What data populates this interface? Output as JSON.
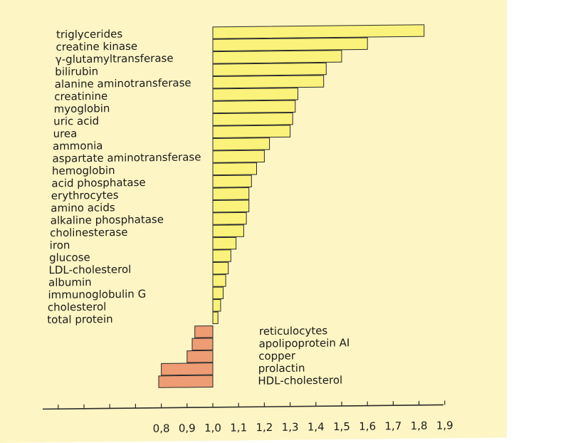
{
  "colors": {
    "page_background": "#fdf5c4",
    "positive_bar": "#fbf27b",
    "negative_bar": "#ee9c74",
    "bar_edge": "#2a2a2a",
    "text": "#1b1b1b"
  },
  "chart_data": {
    "type": "bar",
    "orientation": "horizontal",
    "title": "",
    "xlabel": "",
    "ylabel": "",
    "baseline": 1.0,
    "xlim": [
      0.8,
      1.9
    ],
    "grid": false,
    "legend": "none",
    "x_ticks": [
      "0,8",
      "0,9",
      "1,0",
      "1,1",
      "1,2",
      "1,3",
      "1,4",
      "1,5",
      "1,6",
      "1,7",
      "1,8",
      "1,9"
    ],
    "x_tick_values": [
      0.8,
      0.9,
      1.0,
      1.1,
      1.2,
      1.3,
      1.4,
      1.5,
      1.6,
      1.7,
      1.8,
      1.9
    ],
    "categories": [
      "triglycerides",
      "creatine kinase",
      "γ-glutamyltransferase",
      "bilirubin",
      "alanine aminotransferase",
      "creatinine",
      "myoglobin",
      "uric acid",
      "urea",
      "ammonia",
      "aspartate aminotransferase",
      "hemoglobin",
      "acid phosphatase",
      "erythrocytes",
      "amino acids",
      "alkaline phosphatase",
      "cholinesterase",
      "iron",
      "glucose",
      "LDL-cholesterol",
      "albumin",
      "immunoglobulin G",
      "cholesterol",
      "total protein",
      "reticulocytes",
      "apolipoprotein AI",
      "copper",
      "prolactin",
      "HDL-cholesterol"
    ],
    "values": [
      1.82,
      1.6,
      1.5,
      1.44,
      1.43,
      1.33,
      1.32,
      1.31,
      1.3,
      1.22,
      1.2,
      1.17,
      1.15,
      1.14,
      1.14,
      1.13,
      1.12,
      1.09,
      1.07,
      1.06,
      1.05,
      1.04,
      1.03,
      1.02,
      0.93,
      0.92,
      0.9,
      0.8,
      0.79
    ]
  }
}
